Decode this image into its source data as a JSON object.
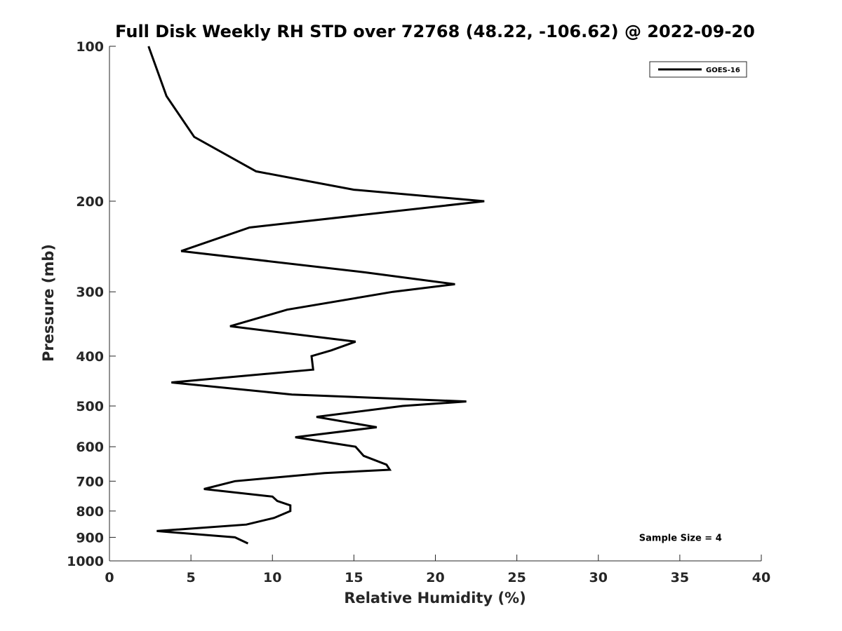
{
  "chart_data": {
    "type": "line",
    "title": "Full Disk Weekly RH STD over 72768 (48.22, -106.62) @ 2022-09-20",
    "xlabel": "Relative Humidity (%)",
    "ylabel": "Pressure (mb)",
    "xlim": [
      0,
      40
    ],
    "ylim": [
      100,
      1000
    ],
    "y_scale": "log",
    "y_reversed": true,
    "x_ticks": [
      0,
      5,
      10,
      15,
      20,
      25,
      30,
      35,
      40
    ],
    "y_ticks": [
      100,
      200,
      300,
      400,
      500,
      600,
      700,
      800,
      900,
      1000
    ],
    "grid": false,
    "legend_position": "top-right",
    "series": [
      {
        "name": "GOES-16",
        "color": "#000000",
        "points": [
          {
            "x": 2.4,
            "p": 100
          },
          {
            "x": 3.5,
            "p": 125
          },
          {
            "x": 5.2,
            "p": 150
          },
          {
            "x": 9.0,
            "p": 175
          },
          {
            "x": 15.0,
            "p": 190
          },
          {
            "x": 23.0,
            "p": 200
          },
          {
            "x": 8.6,
            "p": 225
          },
          {
            "x": 4.4,
            "p": 250
          },
          {
            "x": 15.7,
            "p": 275
          },
          {
            "x": 21.2,
            "p": 290
          },
          {
            "x": 17.4,
            "p": 300
          },
          {
            "x": 10.9,
            "p": 325
          },
          {
            "x": 7.4,
            "p": 350
          },
          {
            "x": 15.1,
            "p": 375
          },
          {
            "x": 13.6,
            "p": 390
          },
          {
            "x": 12.4,
            "p": 400
          },
          {
            "x": 12.5,
            "p": 425
          },
          {
            "x": 3.8,
            "p": 450
          },
          {
            "x": 11.2,
            "p": 475
          },
          {
            "x": 21.9,
            "p": 490
          },
          {
            "x": 18.0,
            "p": 500
          },
          {
            "x": 12.7,
            "p": 525
          },
          {
            "x": 16.4,
            "p": 550
          },
          {
            "x": 11.4,
            "p": 575
          },
          {
            "x": 15.1,
            "p": 600
          },
          {
            "x": 15.6,
            "p": 625
          },
          {
            "x": 17.0,
            "p": 650
          },
          {
            "x": 17.2,
            "p": 665
          },
          {
            "x": 13.2,
            "p": 675
          },
          {
            "x": 7.7,
            "p": 700
          },
          {
            "x": 5.8,
            "p": 725
          },
          {
            "x": 10.0,
            "p": 750
          },
          {
            "x": 10.3,
            "p": 765
          },
          {
            "x": 11.1,
            "p": 780
          },
          {
            "x": 11.1,
            "p": 800
          },
          {
            "x": 10.1,
            "p": 825
          },
          {
            "x": 8.4,
            "p": 850
          },
          {
            "x": 2.9,
            "p": 875
          },
          {
            "x": 7.7,
            "p": 900
          },
          {
            "x": 8.5,
            "p": 925
          }
        ]
      }
    ],
    "annotations": [
      {
        "text": "Sample Size = 4",
        "x": 32.5,
        "p": 900
      }
    ]
  }
}
